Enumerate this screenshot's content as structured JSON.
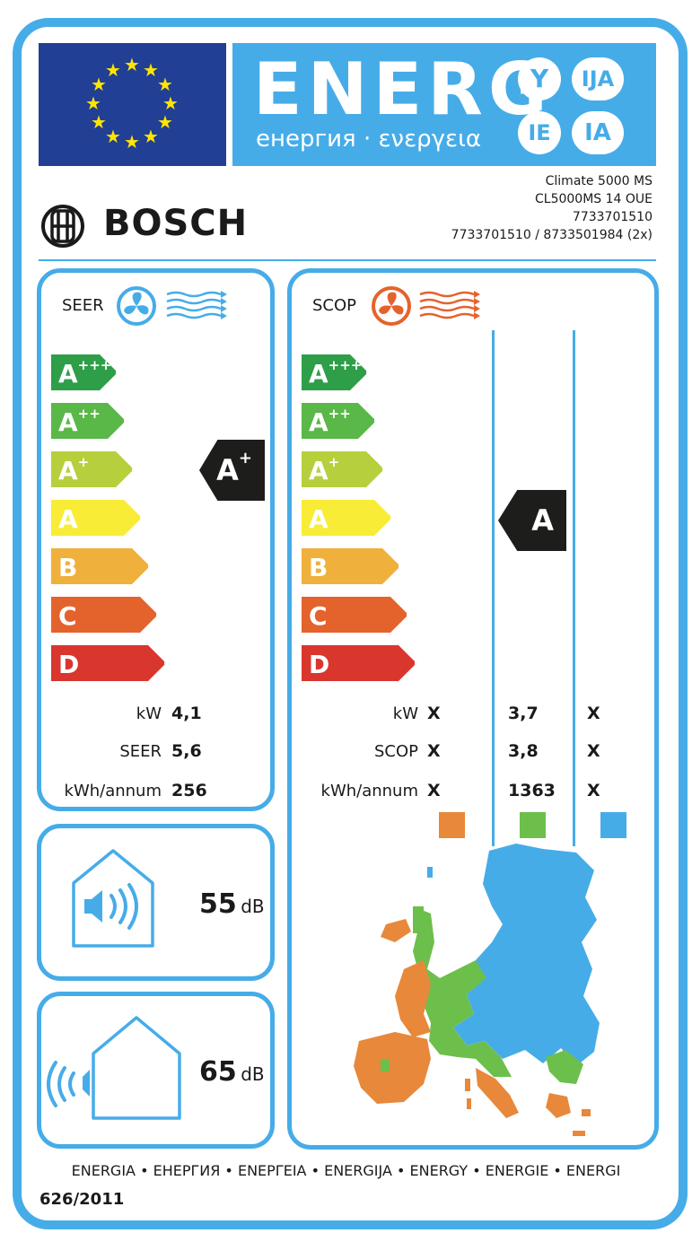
{
  "header": {
    "title": "ENERG",
    "subtitle": "енергия · ενεργεια",
    "suffixes": [
      "Y",
      "IJA",
      "IE",
      "IA"
    ]
  },
  "product": {
    "brand": "BOSCH",
    "lines": [
      "Climate 5000 MS",
      "CL5000MS 14 OUE",
      "7733701510",
      "7733701510 / 8733501984 (2x)"
    ]
  },
  "cooling": {
    "label": "SEER",
    "classes": [
      "A",
      "A",
      "A",
      "A",
      "B",
      "C",
      "D"
    ],
    "class_sups": [
      "+++",
      "++",
      "+",
      "",
      "",
      "",
      ""
    ],
    "rating": "A",
    "rating_sup": "+",
    "rows": [
      {
        "label": "kW",
        "value": "4,1"
      },
      {
        "label": "SEER",
        "value": "5,6"
      },
      {
        "label": "kWh/annum",
        "value": "256"
      }
    ]
  },
  "heating": {
    "label": "SCOP",
    "classes": [
      "A",
      "A",
      "A",
      "A",
      "B",
      "C",
      "D"
    ],
    "class_sups": [
      "+++",
      "++",
      "+",
      "",
      "",
      "",
      ""
    ],
    "rating": "A",
    "rows": [
      {
        "label": "kW",
        "values": [
          "X",
          "3,7",
          "X"
        ]
      },
      {
        "label": "SCOP",
        "values": [
          "X",
          "3,8",
          "X"
        ]
      },
      {
        "label": "kWh/annum",
        "values": [
          "X",
          "1363",
          "X"
        ]
      }
    ],
    "zone_colors": [
      "#E8883A",
      "#6DBF4B",
      "#46ACE8"
    ]
  },
  "noise": {
    "indoor_value": "55",
    "outdoor_value": "65",
    "unit": "dB"
  },
  "class_colors": [
    "#2E9E48",
    "#59B847",
    "#B6CF3C",
    "#F9EC36",
    "#EFB03C",
    "#E4632C",
    "#D9362E"
  ],
  "footer": {
    "languages": "ENERGIA • ЕНЕРГИЯ • ΕΝΕΡΓΕΙΑ • ENERGIJA • ENERGY • ENERGIE • ENERGI",
    "regulation": "626/2011"
  }
}
